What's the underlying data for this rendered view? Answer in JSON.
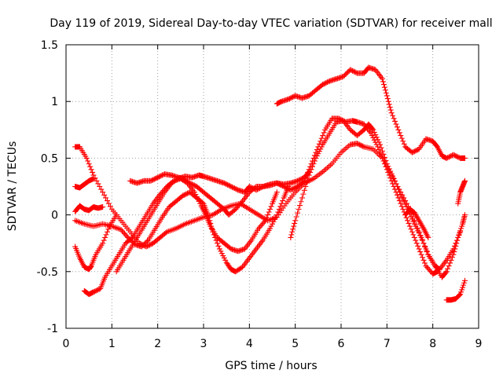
{
  "chart_data": {
    "type": "scatter",
    "title": "Day 119 of 2019, Sidereal Day-to-day VTEC variation (SDTVAR) for receiver mall",
    "xlabel": "GPS time / hours",
    "ylabel": "SDTVAR / TECUs",
    "xlim": [
      0,
      9
    ],
    "ylim": [
      -1,
      1.5
    ],
    "x_ticks": [
      "0",
      "1",
      "2",
      "3",
      "4",
      "5",
      "6",
      "7",
      "8",
      "9"
    ],
    "y_ticks": [
      "-1",
      "-0.5",
      "0",
      "0.5",
      "1",
      "1.5"
    ],
    "grid": true,
    "marker": "+",
    "color": "#ff0000",
    "series": [
      {
        "points": [
          [
            0.2,
            0.6
          ],
          [
            0.3,
            0.6
          ],
          [
            0.45,
            0.5
          ],
          [
            0.6,
            0.35
          ],
          [
            0.8,
            0.2
          ],
          [
            1.0,
            0.05
          ],
          [
            1.2,
            -0.05
          ],
          [
            1.4,
            -0.15
          ],
          [
            1.6,
            -0.25
          ],
          [
            1.75,
            -0.28
          ],
          [
            1.9,
            -0.25
          ],
          [
            2.05,
            -0.2
          ],
          [
            2.2,
            -0.15
          ],
          [
            2.4,
            -0.12
          ],
          [
            2.6,
            -0.08
          ],
          [
            2.8,
            -0.05
          ],
          [
            3.0,
            -0.02
          ],
          [
            3.2,
            0.0
          ],
          [
            3.4,
            0.05
          ],
          [
            3.6,
            0.08
          ],
          [
            3.8,
            0.1
          ],
          [
            4.0,
            0.05
          ],
          [
            4.2,
            0.0
          ],
          [
            4.4,
            -0.05
          ],
          [
            4.6,
            -0.02
          ],
          [
            4.8,
            0.1
          ],
          [
            5.0,
            0.2
          ],
          [
            5.2,
            0.28
          ],
          [
            5.4,
            0.32
          ],
          [
            5.6,
            0.38
          ],
          [
            5.8,
            0.45
          ],
          [
            6.0,
            0.55
          ],
          [
            6.2,
            0.62
          ],
          [
            6.35,
            0.63
          ],
          [
            6.5,
            0.6
          ],
          [
            6.7,
            0.58
          ],
          [
            6.9,
            0.5
          ],
          [
            7.1,
            0.35
          ],
          [
            7.3,
            0.2
          ],
          [
            7.5,
            0.05
          ],
          [
            7.7,
            -0.15
          ],
          [
            7.9,
            -0.35
          ],
          [
            8.05,
            -0.45
          ],
          [
            8.2,
            -0.55
          ],
          [
            8.3,
            -0.5
          ],
          [
            8.45,
            -0.35
          ],
          [
            8.55,
            -0.2
          ],
          [
            8.65,
            -0.08
          ],
          [
            8.7,
            0.0
          ]
        ]
      },
      {
        "points": [
          [
            0.2,
            0.25
          ],
          [
            0.3,
            0.24
          ],
          [
            0.4,
            0.27
          ],
          [
            0.5,
            0.3
          ],
          [
            0.6,
            0.32
          ]
        ]
      },
      {
        "points": [
          [
            0.2,
            -0.28
          ],
          [
            0.3,
            -0.38
          ],
          [
            0.4,
            -0.46
          ],
          [
            0.5,
            -0.48
          ],
          [
            0.55,
            -0.45
          ],
          [
            0.65,
            -0.35
          ],
          [
            0.8,
            -0.25
          ],
          [
            0.95,
            -0.1
          ],
          [
            1.1,
            0.0
          ]
        ]
      },
      {
        "points": [
          [
            0.2,
            0.03
          ],
          [
            0.3,
            0.08
          ],
          [
            0.4,
            0.05
          ],
          [
            0.5,
            0.04
          ],
          [
            0.6,
            0.07
          ],
          [
            0.7,
            0.06
          ],
          [
            0.8,
            0.07
          ]
        ]
      },
      {
        "points": [
          [
            0.2,
            -0.05
          ],
          [
            0.4,
            -0.08
          ],
          [
            0.6,
            -0.1
          ],
          [
            0.8,
            -0.08
          ],
          [
            1.0,
            -0.1
          ],
          [
            1.2,
            -0.13
          ],
          [
            1.35,
            -0.2
          ],
          [
            1.5,
            -0.26
          ],
          [
            1.65,
            -0.28
          ],
          [
            1.8,
            -0.22
          ],
          [
            1.95,
            -0.12
          ],
          [
            2.1,
            -0.02
          ],
          [
            2.25,
            0.07
          ],
          [
            2.4,
            0.12
          ],
          [
            2.55,
            0.17
          ],
          [
            2.7,
            0.2
          ],
          [
            2.85,
            0.15
          ],
          [
            3.0,
            0.1
          ],
          [
            3.1,
            0.0
          ],
          [
            3.2,
            -0.15
          ],
          [
            3.35,
            -0.3
          ],
          [
            3.5,
            -0.42
          ],
          [
            3.6,
            -0.48
          ],
          [
            3.7,
            -0.5
          ],
          [
            3.85,
            -0.46
          ],
          [
            4.0,
            -0.38
          ],
          [
            4.15,
            -0.3
          ],
          [
            4.3,
            -0.22
          ],
          [
            4.45,
            -0.12
          ],
          [
            4.6,
            0.0
          ],
          [
            4.75,
            0.15
          ],
          [
            4.85,
            0.25
          ]
        ]
      },
      {
        "points": [
          [
            0.4,
            -0.67
          ],
          [
            0.5,
            -0.7
          ],
          [
            0.6,
            -0.68
          ],
          [
            0.75,
            -0.65
          ],
          [
            0.85,
            -0.55
          ],
          [
            1.0,
            -0.45
          ],
          [
            1.15,
            -0.35
          ],
          [
            1.3,
            -0.25
          ],
          [
            1.45,
            -0.2
          ],
          [
            1.6,
            -0.1
          ],
          [
            1.75,
            0.0
          ],
          [
            1.9,
            0.1
          ],
          [
            2.05,
            0.18
          ],
          [
            2.2,
            0.25
          ],
          [
            2.35,
            0.3
          ],
          [
            2.5,
            0.32
          ],
          [
            2.65,
            0.28
          ],
          [
            2.8,
            0.2
          ],
          [
            2.95,
            0.08
          ],
          [
            3.05,
            0.0
          ],
          [
            3.15,
            -0.1
          ],
          [
            3.3,
            -0.2
          ],
          [
            3.45,
            -0.25
          ],
          [
            3.6,
            -0.3
          ],
          [
            3.75,
            -0.32
          ],
          [
            3.9,
            -0.3
          ],
          [
            4.05,
            -0.22
          ],
          [
            4.2,
            -0.12
          ],
          [
            4.35,
            -0.05
          ],
          [
            4.5,
            0.1
          ],
          [
            4.6,
            0.2
          ]
        ]
      },
      {
        "points": [
          [
            1.4,
            0.3
          ],
          [
            1.55,
            0.28
          ],
          [
            1.7,
            0.3
          ],
          [
            1.85,
            0.3
          ],
          [
            2.0,
            0.33
          ],
          [
            2.15,
            0.36
          ],
          [
            2.3,
            0.35
          ],
          [
            2.45,
            0.33
          ],
          [
            2.55,
            0.32
          ],
          [
            2.7,
            0.28
          ],
          [
            2.85,
            0.25
          ],
          [
            3.0,
            0.2
          ],
          [
            3.15,
            0.15
          ],
          [
            3.3,
            0.1
          ],
          [
            3.45,
            0.05
          ],
          [
            3.55,
            0.0
          ],
          [
            3.7,
            0.05
          ],
          [
            3.85,
            0.12
          ],
          [
            4.0,
            0.2
          ],
          [
            4.15,
            0.25
          ],
          [
            4.3,
            0.25
          ],
          [
            4.45,
            0.27
          ],
          [
            4.6,
            0.28
          ],
          [
            4.75,
            0.27
          ],
          [
            4.9,
            0.28
          ],
          [
            5.05,
            0.3
          ],
          [
            5.2,
            0.33
          ],
          [
            5.3,
            0.38
          ]
        ]
      },
      {
        "points": [
          [
            1.1,
            -0.5
          ],
          [
            1.25,
            -0.4
          ],
          [
            1.4,
            -0.3
          ],
          [
            1.55,
            -0.2
          ],
          [
            1.7,
            -0.1
          ],
          [
            1.85,
            0.0
          ],
          [
            2.0,
            0.1
          ],
          [
            2.15,
            0.2
          ],
          [
            2.3,
            0.28
          ],
          [
            2.45,
            0.32
          ],
          [
            2.6,
            0.34
          ],
          [
            2.75,
            0.33
          ],
          [
            2.9,
            0.35
          ],
          [
            3.0,
            0.34
          ],
          [
            3.15,
            0.32
          ],
          [
            3.3,
            0.3
          ],
          [
            3.45,
            0.28
          ],
          [
            3.6,
            0.25
          ],
          [
            3.75,
            0.22
          ],
          [
            3.9,
            0.2
          ],
          [
            4.0,
            0.25
          ],
          [
            4.15,
            0.22
          ],
          [
            4.3,
            0.25
          ],
          [
            4.45,
            0.26
          ],
          [
            4.6,
            0.28
          ],
          [
            4.75,
            0.25
          ],
          [
            4.9,
            0.22
          ],
          [
            5.05,
            0.25
          ],
          [
            5.2,
            0.3
          ],
          [
            5.35,
            0.45
          ],
          [
            5.5,
            0.6
          ],
          [
            5.65,
            0.75
          ],
          [
            5.8,
            0.85
          ],
          [
            5.95,
            0.85
          ],
          [
            6.1,
            0.82
          ],
          [
            6.25,
            0.83
          ],
          [
            6.35,
            0.82
          ],
          [
            6.5,
            0.8
          ],
          [
            6.65,
            0.72
          ],
          [
            6.8,
            0.6
          ],
          [
            6.95,
            0.45
          ],
          [
            7.1,
            0.3
          ],
          [
            7.25,
            0.15
          ],
          [
            7.4,
            0.0
          ],
          [
            7.55,
            -0.15
          ],
          [
            7.7,
            -0.3
          ],
          [
            7.85,
            -0.45
          ],
          [
            8.0,
            -0.52
          ],
          [
            8.1,
            -0.5
          ]
        ]
      },
      {
        "points": [
          [
            4.9,
            -0.2
          ],
          [
            5.0,
            -0.05
          ],
          [
            5.15,
            0.15
          ],
          [
            5.3,
            0.35
          ],
          [
            5.45,
            0.5
          ],
          [
            5.6,
            0.62
          ],
          [
            5.75,
            0.72
          ],
          [
            5.9,
            0.82
          ],
          [
            6.05,
            0.83
          ],
          [
            6.2,
            0.75
          ],
          [
            6.35,
            0.7
          ],
          [
            6.5,
            0.75
          ],
          [
            6.6,
            0.8
          ],
          [
            6.7,
            0.75
          ],
          [
            6.85,
            0.62
          ],
          [
            7.0,
            0.45
          ],
          [
            7.15,
            0.32
          ],
          [
            7.3,
            0.18
          ],
          [
            7.45,
            0.05
          ],
          [
            7.6,
            -0.08
          ],
          [
            7.75,
            -0.2
          ],
          [
            7.9,
            -0.35
          ],
          [
            8.05,
            -0.45
          ],
          [
            8.15,
            -0.48
          ],
          [
            8.3,
            -0.4
          ],
          [
            8.45,
            -0.3
          ],
          [
            8.6,
            -0.15
          ]
        ]
      },
      {
        "points": [
          [
            4.6,
            0.98
          ],
          [
            4.7,
            1.0
          ],
          [
            4.85,
            1.02
          ],
          [
            5.0,
            1.05
          ],
          [
            5.15,
            1.03
          ],
          [
            5.3,
            1.05
          ],
          [
            5.45,
            1.1
          ],
          [
            5.6,
            1.15
          ],
          [
            5.75,
            1.18
          ],
          [
            5.9,
            1.2
          ],
          [
            6.05,
            1.22
          ],
          [
            6.2,
            1.28
          ],
          [
            6.35,
            1.25
          ],
          [
            6.5,
            1.25
          ],
          [
            6.6,
            1.3
          ],
          [
            6.75,
            1.28
          ],
          [
            6.9,
            1.2
          ],
          [
            7.0,
            1.05
          ],
          [
            7.1,
            0.9
          ],
          [
            7.25,
            0.75
          ],
          [
            7.4,
            0.6
          ],
          [
            7.55,
            0.55
          ],
          [
            7.7,
            0.58
          ],
          [
            7.85,
            0.67
          ],
          [
            8.0,
            0.65
          ],
          [
            8.1,
            0.6
          ],
          [
            8.2,
            0.52
          ],
          [
            8.3,
            0.5
          ],
          [
            8.45,
            0.53
          ],
          [
            8.6,
            0.5
          ],
          [
            8.7,
            0.5
          ]
        ]
      },
      {
        "points": [
          [
            7.4,
            0.0
          ],
          [
            7.5,
            0.05
          ],
          [
            7.6,
            0.02
          ],
          [
            7.7,
            -0.05
          ],
          [
            7.8,
            -0.12
          ],
          [
            7.9,
            -0.2
          ]
        ]
      },
      {
        "points": [
          [
            8.3,
            -0.75
          ],
          [
            8.4,
            -0.75
          ],
          [
            8.5,
            -0.74
          ],
          [
            8.6,
            -0.7
          ],
          [
            8.7,
            -0.58
          ]
        ]
      },
      {
        "points": [
          [
            8.55,
            0.1
          ],
          [
            8.6,
            0.2
          ],
          [
            8.65,
            0.25
          ],
          [
            8.7,
            0.3
          ]
        ]
      }
    ]
  }
}
